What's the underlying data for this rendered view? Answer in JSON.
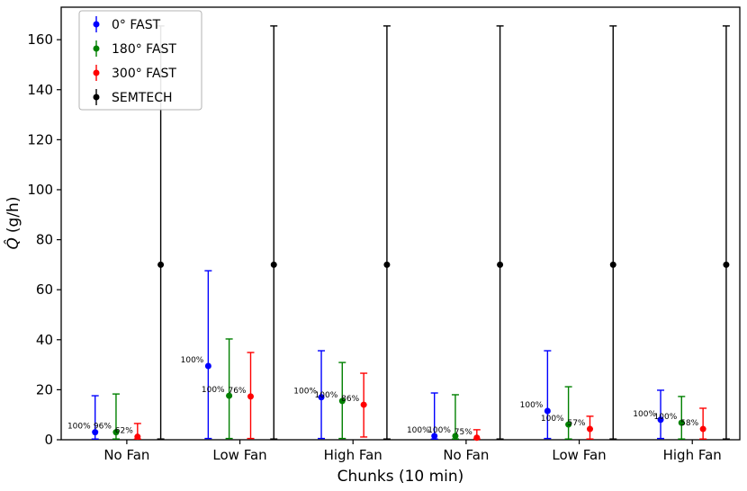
{
  "chart_data": {
    "type": "errorbar",
    "title": "",
    "xlabel": "Chunks (10 min)",
    "ylabel": "Q̂ (g/h)",
    "ylabel_var": "Q̂",
    "ylabel_units": "(g/h)",
    "ylim": [
      0,
      173
    ],
    "yticks": [
      0,
      20,
      40,
      60,
      80,
      100,
      120,
      140,
      160
    ],
    "grid": false,
    "legend_position": "upper left",
    "categories": [
      "No Fan",
      "Low Fan",
      "High Fan",
      "No Fan",
      "Low Fan",
      "High Fan"
    ],
    "series": [
      {
        "name": "0° FAST",
        "color": "#0000ff",
        "values": [
          3.0,
          29.5,
          17.0,
          1.5,
          11.5,
          8.0
        ],
        "lower": [
          0.3,
          0.5,
          0.5,
          0.3,
          0.5,
          0.5
        ],
        "upper": [
          17.6,
          67.6,
          35.6,
          18.7,
          35.6,
          19.8
        ],
        "labels": [
          "100%",
          "100%",
          "100%",
          "100%",
          "100%",
          "100%"
        ]
      },
      {
        "name": "180° FAST",
        "color": "#008000",
        "values": [
          3.0,
          17.6,
          15.5,
          1.5,
          6.1,
          6.8
        ],
        "lower": [
          0.3,
          0.5,
          0.5,
          0.3,
          0.3,
          0.3
        ],
        "upper": [
          18.3,
          40.3,
          30.9,
          18.0,
          21.2,
          17.3
        ],
        "labels": [
          "96%",
          "100%",
          "100%",
          "100%",
          "100%",
          "100%"
        ]
      },
      {
        "name": "300° FAST",
        "color": "#ff0000",
        "values": [
          1.2,
          17.3,
          14.0,
          0.8,
          4.3,
          4.3
        ],
        "lower": [
          0.3,
          0.5,
          1.1,
          0.3,
          0.3,
          0.3
        ],
        "upper": [
          6.5,
          34.9,
          26.6,
          4.0,
          9.4,
          12.6
        ],
        "labels": [
          "62%",
          "76%",
          "86%",
          "75%",
          "57%",
          "58%"
        ]
      },
      {
        "name": "SEMTECH",
        "color": "#000000",
        "values": [
          70,
          70,
          70,
          70,
          70,
          70
        ],
        "lower": [
          0.3,
          0.3,
          0.3,
          0.3,
          0.3,
          0.3
        ],
        "upper": [
          165.5,
          165.5,
          165.5,
          165.5,
          165.5,
          165.5
        ],
        "labels": [
          "",
          "",
          "",
          "",
          "",
          ""
        ]
      }
    ]
  }
}
